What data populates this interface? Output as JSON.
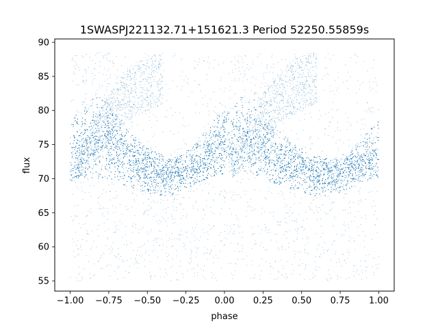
{
  "chart_data": {
    "type": "scatter",
    "title": "1SWASPJ221132.71+151621.3 Period 52250.55859s",
    "xlabel": "phase",
    "ylabel": "flux",
    "xlim": [
      -1.1,
      1.1
    ],
    "ylim": [
      53.5,
      90.5
    ],
    "xticks": [
      -1.0,
      -0.75,
      -0.5,
      -0.25,
      0.0,
      0.25,
      0.5,
      0.75,
      1.0
    ],
    "xtick_labels": [
      "−1.00",
      "−0.75",
      "−0.50",
      "−0.25",
      "0.00",
      "0.25",
      "0.50",
      "0.75",
      "1.00"
    ],
    "yticks": [
      55,
      60,
      65,
      70,
      75,
      80,
      85,
      90
    ],
    "ytick_labels": [
      "55",
      "60",
      "65",
      "70",
      "75",
      "80",
      "85",
      "90"
    ],
    "grid": false,
    "series": [
      {
        "color": "#1f77b4",
        "x": [
          -1.0,
          -0.95,
          -0.9,
          -0.85,
          -0.8,
          -0.75,
          -0.7,
          -0.65,
          -0.6,
          -0.55,
          -0.5,
          -0.45,
          -0.4,
          -0.35,
          -0.3,
          -0.25,
          -0.2,
          -0.15,
          -0.1,
          -0.05,
          0.0,
          0.05,
          0.1,
          0.15,
          0.2,
          0.25,
          0.3,
          0.35,
          0.4,
          0.45,
          0.5,
          0.55,
          0.6,
          0.65,
          0.7,
          0.75,
          0.8,
          0.85,
          0.9,
          0.95,
          1.0
        ],
        "y": [
          72.5,
          73.5,
          74.5,
          75.5,
          76.0,
          75.5,
          75.0,
          74.0,
          73.0,
          72.0,
          71.5,
          71.0,
          70.5,
          70.5,
          71.0,
          71.5,
          72.0,
          72.5,
          73.5,
          74.5,
          75.0,
          75.5,
          76.0,
          76.0,
          75.5,
          75.0,
          74.0,
          73.0,
          72.5,
          72.0,
          71.5,
          71.0,
          70.5,
          70.5,
          70.5,
          71.0,
          71.5,
          72.0,
          72.5,
          73.0,
          72.5
        ],
        "band_upper": [
          79.0,
          79.5,
          80.5,
          82.0,
          82.0,
          81.0,
          79.5,
          78.0,
          76.5,
          75.5,
          74.5,
          74.0,
          73.5,
          73.0,
          73.5,
          74.5,
          75.5,
          76.5,
          78.0,
          79.5,
          80.5,
          81.5,
          82.0,
          82.0,
          81.5,
          80.5,
          79.0,
          77.5,
          76.0,
          75.0,
          74.5,
          74.0,
          73.5,
          73.0,
          73.0,
          73.5,
          74.0,
          75.0,
          76.0,
          77.5,
          79.0
        ],
        "band_lower": [
          69.5,
          70.0,
          70.0,
          70.0,
          70.0,
          70.0,
          69.5,
          69.0,
          68.5,
          68.0,
          68.0,
          67.5,
          67.5,
          67.5,
          68.0,
          68.5,
          69.0,
          69.5,
          70.0,
          70.5,
          70.5,
          71.0,
          71.0,
          71.0,
          70.5,
          70.0,
          69.5,
          69.0,
          68.5,
          68.0,
          68.0,
          67.5,
          67.5,
          67.5,
          67.5,
          68.0,
          68.5,
          69.0,
          69.5,
          70.0,
          70.0
        ],
        "arc_upper": [
          74.0,
          76.0,
          78.0,
          80.5,
          82.5,
          84.0,
          85.5,
          86.5,
          87.5,
          88.0,
          88.5,
          88.5
        ],
        "arc_lower": [
          70.0,
          71.0,
          72.0,
          73.5,
          75.0,
          76.5,
          78.0,
          79.0,
          79.5,
          80.0,
          80.5,
          81.0
        ],
        "arc_x": [
          -0.95,
          -0.9,
          -0.85,
          -0.8,
          -0.75,
          -0.7,
          -0.65,
          -0.6,
          -0.55,
          -0.5,
          -0.45,
          -0.4
        ]
      }
    ]
  }
}
